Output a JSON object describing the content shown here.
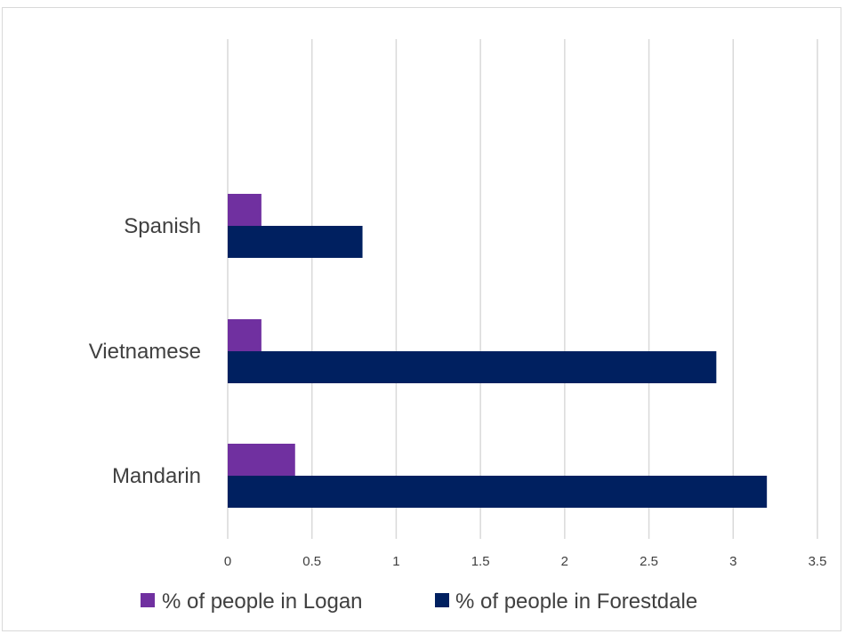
{
  "chart_data": {
    "type": "bar",
    "orientation": "horizontal",
    "title": "",
    "xlabel": "",
    "ylabel": "",
    "categories": [
      "Spanish",
      "Vietnamese",
      "Mandarin"
    ],
    "series": [
      {
        "name": "% of people in Logan",
        "color": "#7030a0",
        "values": [
          0.2,
          0.2,
          0.4
        ]
      },
      {
        "name": "% of people in Forestdale",
        "color": "#002060",
        "values": [
          0.8,
          2.9,
          3.2
        ]
      }
    ],
    "xlim": [
      0,
      3.5
    ],
    "xticks": [
      "0",
      "0.5",
      "1",
      "1.5",
      "2",
      "2.5",
      "3",
      "3.5"
    ],
    "xtick_values": [
      0,
      0.5,
      1,
      1.5,
      2,
      2.5,
      3,
      3.5
    ],
    "grid": "vertical",
    "legend_position": "bottom"
  }
}
